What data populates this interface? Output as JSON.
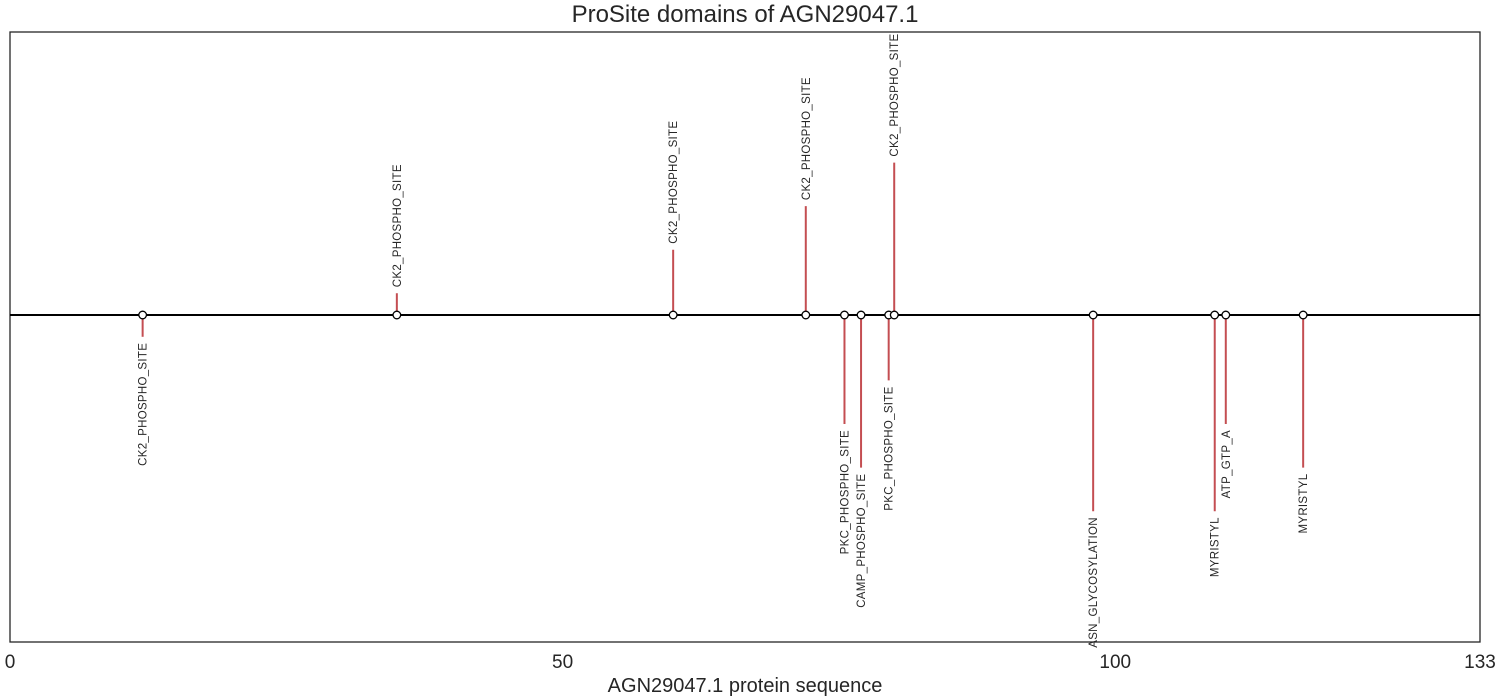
{
  "colors": {
    "stem": "#c44e52",
    "baseline": "#000000",
    "marker_fill": "#ffffff",
    "marker_edge": "#000000",
    "frame": "#262626"
  },
  "chart_data": {
    "type": "lollipop",
    "title": "ProSite domains of AGN29047.1",
    "xlabel": "AGN29047.1 protein sequence",
    "xlim": [
      0,
      133
    ],
    "ylim": [
      -3,
      2.6
    ],
    "xticks": [
      0,
      50,
      100,
      133
    ],
    "xtick_labels": [
      "0",
      "50",
      "100",
      "133"
    ],
    "grid": false,
    "sites": [
      {
        "name": "CK2_PHOSPHO_SITE",
        "position": 12,
        "height": -0.2
      },
      {
        "name": "CK2_PHOSPHO_SITE",
        "position": 35,
        "height": 0.2
      },
      {
        "name": "CK2_PHOSPHO_SITE",
        "position": 60,
        "height": 0.6
      },
      {
        "name": "CK2_PHOSPHO_SITE",
        "position": 72,
        "height": 1.0
      },
      {
        "name": "PKC_PHOSPHO_SITE",
        "position": 75.5,
        "height": -1.0
      },
      {
        "name": "CAMP_PHOSPHO_SITE",
        "position": 77,
        "height": -1.4
      },
      {
        "name": "PKC_PHOSPHO_SITE",
        "position": 79.5,
        "height": -0.6
      },
      {
        "name": "CK2_PHOSPHO_SITE",
        "position": 80,
        "height": 1.4
      },
      {
        "name": "ASN_GLYCOSYLATION",
        "position": 98,
        "height": -1.8
      },
      {
        "name": "MYRISTYL",
        "position": 109,
        "height": -1.8
      },
      {
        "name": "ATP_GTP_A",
        "position": 110,
        "height": -1.0
      },
      {
        "name": "MYRISTYL",
        "position": 117,
        "height": -1.4
      }
    ]
  }
}
